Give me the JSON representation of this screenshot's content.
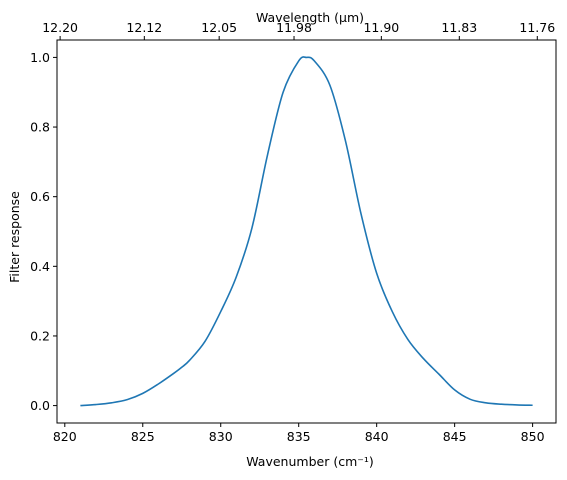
{
  "chart_data": {
    "type": "line",
    "xlabel": "Wavenumber (cm⁻¹)",
    "ylabel": "Filter response",
    "top_xlabel": "Wavelength (μm)",
    "xlim": [
      819.5,
      851.5
    ],
    "ylim": [
      -0.05,
      1.05
    ],
    "xticks": [
      820,
      825,
      830,
      835,
      840,
      845,
      850
    ],
    "yticks": [
      0.0,
      0.2,
      0.4,
      0.6,
      0.8,
      1.0
    ],
    "ytick_labels": [
      "0.0",
      "0.2",
      "0.4",
      "0.6",
      "0.8",
      "1.0"
    ],
    "top_ticks": [
      {
        "label": "12.20",
        "wavenumber": 819.7
      },
      {
        "label": "12.12",
        "wavenumber": 825.1
      },
      {
        "label": "12.05",
        "wavenumber": 829.9
      },
      {
        "label": "11.98",
        "wavenumber": 834.7
      },
      {
        "label": "11.90",
        "wavenumber": 840.3
      },
      {
        "label": "11.83",
        "wavenumber": 845.3
      },
      {
        "label": "11.76",
        "wavenumber": 850.3
      }
    ],
    "grid": false,
    "line_color": "#1f77b4",
    "series": [
      {
        "x": [
          821.0,
          822.0,
          823.0,
          824.0,
          825.0,
          826.0,
          827.0,
          827.5,
          828.0,
          829.0,
          830.0,
          831.0,
          832.0,
          833.0,
          834.0,
          835.0,
          835.5,
          836.0,
          837.0,
          838.0,
          839.0,
          840.0,
          841.0,
          842.0,
          843.0,
          844.0,
          845.0,
          846.0,
          847.0,
          848.0,
          849.0,
          850.0
        ],
        "y": [
          0.0,
          0.003,
          0.008,
          0.017,
          0.035,
          0.062,
          0.093,
          0.11,
          0.13,
          0.185,
          0.27,
          0.37,
          0.51,
          0.72,
          0.9,
          0.99,
          1.0,
          0.99,
          0.92,
          0.76,
          0.55,
          0.38,
          0.27,
          0.19,
          0.135,
          0.09,
          0.045,
          0.018,
          0.008,
          0.004,
          0.002,
          0.001
        ]
      }
    ]
  }
}
